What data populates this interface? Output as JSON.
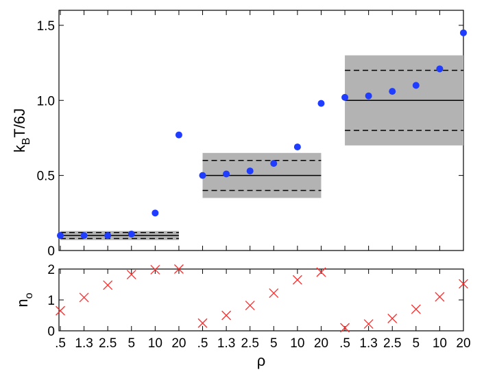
{
  "chart_data": [
    {
      "type": "scatter",
      "ylabel_main": "k",
      "ylabel_sub": "B",
      "ylabel_rest": "T/6J",
      "xlabel": "",
      "ylim": [
        0,
        1.6
      ],
      "y_ticks": [
        0,
        0.5,
        1.0,
        1.5
      ],
      "y_tick_labels": [
        "0",
        "0.5",
        "1.0",
        "1.5"
      ],
      "grid": false,
      "colors": {
        "points": "#1f3cff",
        "band": "#b3b3b3"
      },
      "bands": [
        {
          "x_from": 0,
          "x_to": 5,
          "center": 0.1,
          "lower": 0.08,
          "upper": 0.12,
          "fill_lower": 0.07,
          "fill_upper": 0.13
        },
        {
          "x_from": 6,
          "x_to": 11,
          "center": 0.5,
          "lower": 0.4,
          "upper": 0.6,
          "fill_lower": 0.35,
          "fill_upper": 0.65
        },
        {
          "x_from": 12,
          "x_to": 17,
          "center": 1.0,
          "lower": 0.8,
          "upper": 1.2,
          "fill_lower": 0.7,
          "fill_upper": 1.3
        }
      ],
      "series": [
        {
          "marker": "circle",
          "values": [
            0.1,
            0.1,
            0.1,
            0.11,
            0.25,
            0.77,
            0.5,
            0.51,
            0.53,
            0.58,
            0.69,
            0.98,
            1.02,
            1.03,
            1.06,
            1.1,
            1.21,
            1.45
          ]
        }
      ]
    },
    {
      "type": "scatter",
      "ylabel_main": "n",
      "ylabel_sub": "o",
      "xlabel": "ρ",
      "ylim": [
        0,
        2
      ],
      "y_ticks": [
        0,
        1,
        2
      ],
      "y_tick_labels": [
        "0",
        "1",
        "2"
      ],
      "categories": [
        ".5",
        "1.3",
        "2.5",
        "5",
        "10",
        "20",
        ".5",
        "1.3",
        "2.5",
        "5",
        "10",
        "20",
        ".5",
        "1.3",
        "2.5",
        "5",
        "10",
        "20"
      ],
      "grid": false,
      "colors": {
        "points": "#ff2a2a"
      },
      "series": [
        {
          "marker": "x",
          "values": [
            0.65,
            1.08,
            1.48,
            1.82,
            1.98,
            2.0,
            0.25,
            0.5,
            0.82,
            1.22,
            1.65,
            1.9,
            0.1,
            0.22,
            0.4,
            0.7,
            1.1,
            1.52
          ]
        }
      ]
    }
  ]
}
